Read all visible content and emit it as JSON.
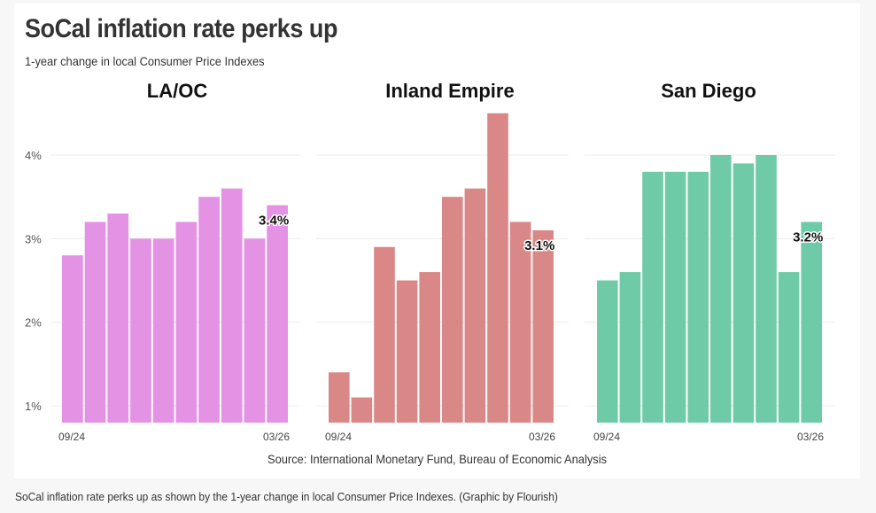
{
  "header": {
    "title": "SoCal inflation rate perks up",
    "subtitle": "1-year change in local Consumer Price Indexes"
  },
  "source": "Source: International Monetary Fund, Bureau of Economic Analysis",
  "caption": "SoCal inflation rate perks up as shown by the 1-year change in local Consumer Price Indexes. (Graphic by Flourish)",
  "chart_data": [
    {
      "type": "bar",
      "title": "LA/OC",
      "color": "#e492e4",
      "x_tick_labels": [
        "09/24",
        "03/26"
      ],
      "y_tick_labels": [
        "1%",
        "2%",
        "3%",
        "4%"
      ],
      "yticks": [
        1,
        2,
        3,
        4
      ],
      "ylim": [
        0.8,
        4.5
      ],
      "grid": true,
      "values": [
        2.8,
        3.2,
        3.3,
        3.0,
        3.0,
        3.2,
        3.5,
        3.6,
        3.0,
        3.4
      ],
      "last_label": "3.4%"
    },
    {
      "type": "bar",
      "title": "Inland Empire",
      "color": "#d98787",
      "x_tick_labels": [
        "09/24",
        "03/26"
      ],
      "yticks": [
        1,
        2,
        3,
        4
      ],
      "ylim": [
        0.8,
        4.5
      ],
      "grid": true,
      "values": [
        1.4,
        1.1,
        2.9,
        2.5,
        2.6,
        3.5,
        3.6,
        4.5,
        3.2,
        3.1
      ],
      "last_label": "3.1%"
    },
    {
      "type": "bar",
      "title": "San Diego",
      "color": "#6fcba7",
      "x_tick_labels": [
        "09/24",
        "03/26"
      ],
      "yticks": [
        1,
        2,
        3,
        4
      ],
      "ylim": [
        0.8,
        4.5
      ],
      "grid": true,
      "values": [
        2.5,
        2.6,
        3.8,
        3.8,
        3.8,
        4.0,
        3.9,
        4.0,
        2.6,
        3.2
      ],
      "last_label": "3.2%"
    }
  ]
}
